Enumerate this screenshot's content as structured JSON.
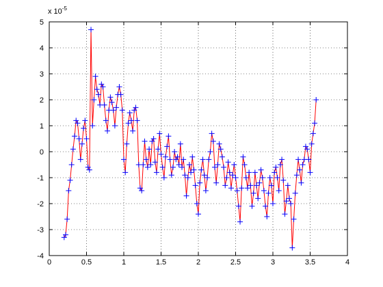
{
  "chart_data": {
    "type": "line",
    "y_multiplier": "x 10",
    "y_multiplier_exponent": "-5",
    "xlim": [
      0,
      4
    ],
    "xticks": [
      0,
      0.5,
      1,
      1.5,
      2,
      2.5,
      3,
      3.5,
      4
    ],
    "ylim": [
      -4,
      5
    ],
    "yticks": [
      -4,
      -3,
      -2,
      -1,
      0,
      1,
      2,
      3,
      4,
      5
    ],
    "grid": true,
    "x": [
      0.2,
      0.22,
      0.24,
      0.26,
      0.28,
      0.3,
      0.32,
      0.34,
      0.36,
      0.38,
      0.4,
      0.42,
      0.44,
      0.46,
      0.48,
      0.5,
      0.52,
      0.54,
      0.56,
      0.58,
      0.6,
      0.62,
      0.64,
      0.66,
      0.68,
      0.7,
      0.72,
      0.74,
      0.76,
      0.78,
      0.8,
      0.82,
      0.84,
      0.86,
      0.88,
      0.9,
      0.92,
      0.94,
      0.96,
      0.98,
      1.0,
      1.02,
      1.04,
      1.06,
      1.08,
      1.1,
      1.12,
      1.14,
      1.16,
      1.18,
      1.2,
      1.22,
      1.24,
      1.26,
      1.28,
      1.3,
      1.32,
      1.34,
      1.36,
      1.38,
      1.4,
      1.42,
      1.44,
      1.46,
      1.48,
      1.5,
      1.52,
      1.54,
      1.56,
      1.58,
      1.6,
      1.62,
      1.64,
      1.66,
      1.68,
      1.7,
      1.72,
      1.74,
      1.76,
      1.78,
      1.8,
      1.82,
      1.84,
      1.86,
      1.88,
      1.9,
      1.92,
      1.94,
      1.96,
      1.98,
      2.0,
      2.02,
      2.04,
      2.06,
      2.08,
      2.1,
      2.12,
      2.14,
      2.16,
      2.18,
      2.2,
      2.22,
      2.24,
      2.26,
      2.28,
      2.3,
      2.32,
      2.34,
      2.36,
      2.38,
      2.4,
      2.42,
      2.44,
      2.46,
      2.48,
      2.5,
      2.52,
      2.54,
      2.56,
      2.58,
      2.6,
      2.62,
      2.64,
      2.66,
      2.68,
      2.7,
      2.72,
      2.74,
      2.76,
      2.78,
      2.8,
      2.82,
      2.84,
      2.86,
      2.88,
      2.9,
      2.92,
      2.94,
      2.96,
      2.98,
      3.0,
      3.02,
      3.04,
      3.06,
      3.08,
      3.1,
      3.12,
      3.14,
      3.16,
      3.18,
      3.2,
      3.22,
      3.24,
      3.26,
      3.28,
      3.3,
      3.32,
      3.34,
      3.36,
      3.38,
      3.4,
      3.42,
      3.44,
      3.46,
      3.48,
      3.5,
      3.52,
      3.54,
      3.56,
      3.58
    ],
    "series": [
      {
        "color": "#ff0000",
        "marker_color": "#0000ff",
        "marker": "+",
        "values": [
          -3.3,
          -3.2,
          -2.6,
          -1.5,
          -1.1,
          -0.5,
          0.1,
          0.6,
          1.2,
          1.1,
          0.5,
          -0.3,
          0.3,
          0.9,
          1.2,
          0.5,
          -0.6,
          -0.7,
          4.7,
          1.0,
          2.0,
          2.9,
          2.4,
          2.2,
          1.8,
          2.6,
          2.5,
          1.8,
          1.2,
          0.8,
          1.6,
          2.1,
          1.9,
          1.6,
          1.0,
          1.7,
          2.2,
          2.5,
          2.2,
          1.6,
          -0.3,
          -0.8,
          0.3,
          1.1,
          1.5,
          1.2,
          0.8,
          1.6,
          1.7,
          1.2,
          -0.5,
          -1.4,
          -1.5,
          -0.5,
          0.4,
          -0.3,
          -0.6,
          0.1,
          -0.5,
          0.4,
          0.5,
          -0.4,
          -0.8,
          0.1,
          0.7,
          -0.1,
          -0.6,
          -1.0,
          -0.2,
          0.2,
          0.6,
          -0.3,
          -0.9,
          -0.6,
          0.0,
          -0.3,
          -0.2,
          -0.5,
          0.3,
          -0.6,
          -0.3,
          -0.9,
          -1.7,
          -1.0,
          -0.5,
          -0.8,
          -0.2,
          -0.7,
          -1.3,
          -2.0,
          -2.4,
          -1.2,
          -0.7,
          -0.3,
          -0.9,
          -1.5,
          -1.0,
          -0.3,
          0.0,
          0.7,
          0.4,
          -0.6,
          -1.2,
          -0.5,
          0.3,
          0.1,
          -0.2,
          -0.6,
          -1.3,
          -1.0,
          -0.4,
          -0.8,
          -1.4,
          -0.9,
          -0.5,
          -1.0,
          -1.5,
          -2.1,
          -2.7,
          -1.4,
          -0.2,
          -0.5,
          -1.0,
          -1.4,
          -0.8,
          -1.3,
          -2.1,
          -1.6,
          -0.8,
          -1.3,
          -1.8,
          -1.2,
          -0.7,
          -1.0,
          -1.5,
          -2.1,
          -2.5,
          -1.6,
          -1.0,
          -1.3,
          -2.0,
          -0.8,
          -0.6,
          -1.0,
          -1.5,
          -0.5,
          -0.3,
          -1.1,
          -2.4,
          -1.9,
          -1.3,
          -1.8,
          -2.0,
          -3.7,
          -2.6,
          -1.6,
          -0.9,
          -0.3,
          -0.7,
          -1.2,
          -0.5,
          -0.3,
          0.2,
          0.1,
          -0.3,
          -0.8,
          0.3,
          0.7,
          1.1,
          2.0
        ]
      }
    ]
  }
}
